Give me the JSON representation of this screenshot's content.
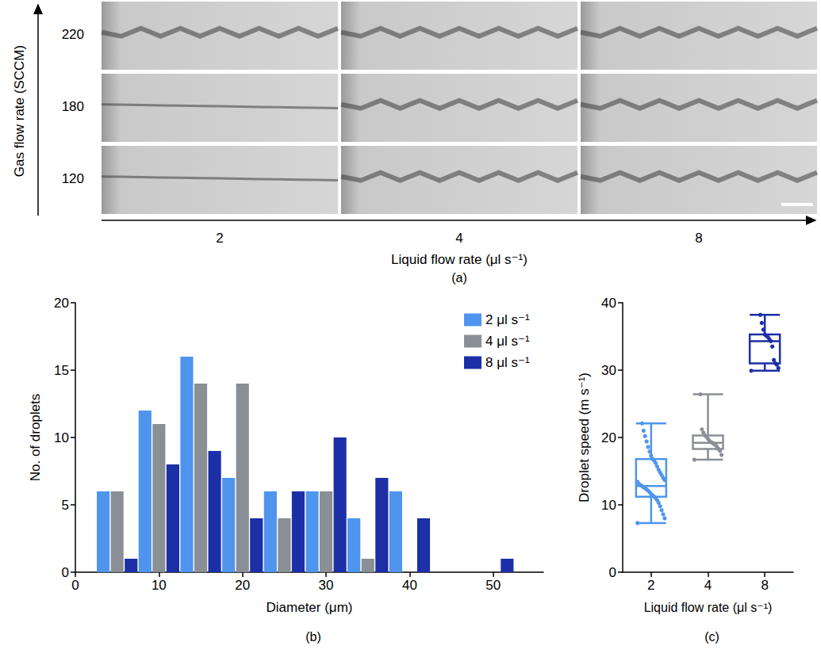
{
  "panel_a": {
    "y_label": "Gas flow rate (SCCM)",
    "rows": [
      220,
      180,
      120
    ],
    "x_label": "Liquid flow rate (μl s⁻¹)",
    "columns": [
      2,
      4,
      8
    ],
    "label": "(a)"
  },
  "chart_data": [
    {
      "type": "histogram",
      "label": "(b)",
      "x_label": "Diameter (μm)",
      "y_label": "No. of droplets",
      "bins": [
        2.5,
        7.5,
        12.5,
        17.5,
        22.5,
        27.5,
        32.5,
        37.5,
        42.5,
        47.5,
        52.5
      ],
      "series": [
        {
          "name": "2 μl s⁻¹",
          "color": "#4f95ee",
          "values": [
            6,
            12,
            16,
            7,
            6,
            6,
            4,
            6,
            0,
            0
          ]
        },
        {
          "name": "4 μl s⁻¹",
          "color": "#8a8f96",
          "values": [
            6,
            11,
            14,
            14,
            4,
            6,
            1,
            0,
            0,
            0
          ]
        },
        {
          "name": "8 μl s⁻¹",
          "color": "#1c2fa6",
          "values": [
            1,
            8,
            9,
            4,
            6,
            10,
            7,
            4,
            0,
            1
          ]
        }
      ],
      "xlim": [
        0,
        56
      ],
      "xticks": [
        0,
        10,
        20,
        30,
        40,
        50
      ],
      "ylim": [
        0,
        20
      ],
      "yticks": [
        0,
        5,
        10,
        15,
        20
      ],
      "legend": "top-right",
      "grid": false
    },
    {
      "type": "box",
      "label": "(c)",
      "x_label": "Liquid flow rate (μl s⁻¹)",
      "y_label": "Droplet speed (m s⁻¹)",
      "categories": [
        "2",
        "4",
        "8"
      ],
      "colors": [
        "#4f95ee",
        "#8a8f96",
        "#1c2fa6"
      ],
      "boxes": [
        {
          "min": 7.3,
          "q1": 11.2,
          "median": 12.8,
          "q3": 16.8,
          "max": 22.1
        },
        {
          "min": 16.7,
          "q1": 18.3,
          "median": 19.2,
          "q3": 20.3,
          "max": 26.4
        },
        {
          "min": 29.9,
          "q1": 31.0,
          "median": 34.3,
          "q3": 35.3,
          "max": 38.2
        }
      ],
      "points": [
        [
          7.3,
          8.0,
          8.6,
          9.2,
          9.8,
          10.3,
          10.7,
          11.0,
          11.2,
          11.4,
          11.6,
          11.9,
          12.1,
          12.3,
          12.5,
          12.6,
          12.8,
          12.9,
          13.1,
          13.4,
          13.7,
          14.0,
          14.4,
          14.8,
          15.2,
          15.7,
          16.2,
          16.6,
          16.8,
          17.3,
          17.9,
          18.6,
          19.4,
          20.2,
          21.0,
          22.1
        ],
        [
          16.7,
          17.4,
          18.0,
          18.3,
          18.6,
          18.9,
          19.0,
          19.2,
          19.3,
          19.5,
          19.8,
          20.1,
          20.3,
          20.7,
          21.2,
          26.4
        ],
        [
          29.9,
          30.3,
          30.8,
          31.0,
          31.5,
          33.5,
          34.3,
          34.6,
          34.9,
          35.1,
          35.3,
          36.0,
          37.0,
          38.2
        ]
      ],
      "ylim": [
        0,
        40
      ],
      "yticks": [
        0,
        10,
        20,
        30,
        40
      ],
      "grid": false
    }
  ]
}
